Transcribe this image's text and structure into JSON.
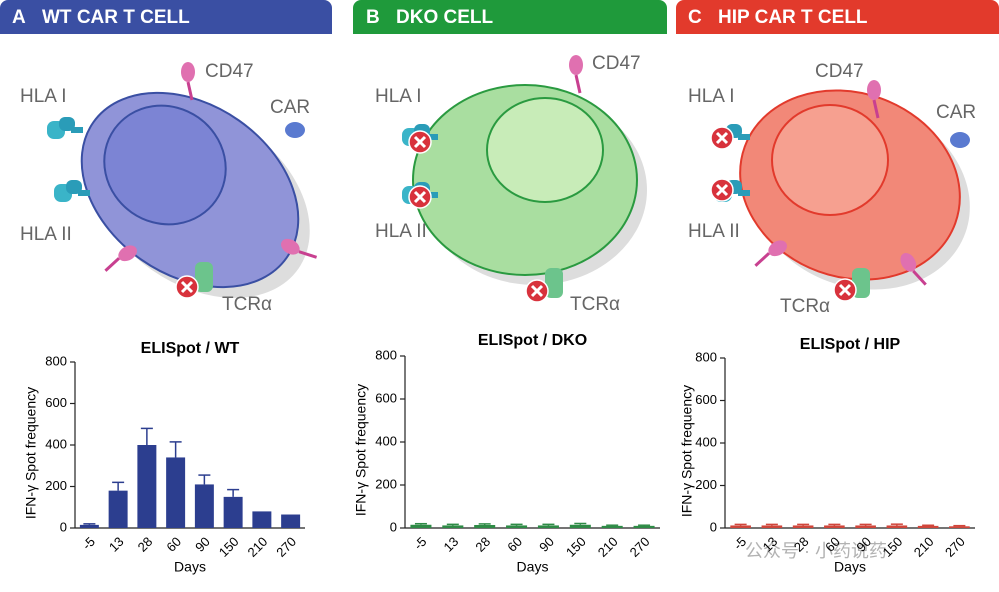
{
  "panels": [
    {
      "letter": "A",
      "title": "WT CAR T CELL",
      "labels": [
        "CD47",
        "HLA I",
        "CAR",
        "HLA II",
        "TCRα"
      ]
    },
    {
      "letter": "B",
      "title": "DKO CELL",
      "labels": [
        "HLA I",
        "CD47",
        "HLA II",
        "TCRα"
      ]
    },
    {
      "letter": "C",
      "title": "HIP CAR T CELL",
      "labels": [
        "CD47",
        "HLA I",
        "CAR",
        "HLA II",
        "TCRα"
      ]
    }
  ],
  "watermark": "公众号 · 小药说药",
  "chart_data": [
    {
      "type": "bar",
      "title": "ELISpot / WT",
      "xlabel": "Days",
      "ylabel": "IFN-γ Spot frequency",
      "categories": [
        "-5",
        "13",
        "28",
        "60",
        "90",
        "150",
        "210",
        "270"
      ],
      "series": [
        {
          "color": "#2c3e8f",
          "values": [
            15,
            180,
            400,
            340,
            210,
            150,
            80,
            65
          ],
          "errors": [
            5,
            40,
            80,
            75,
            45,
            35,
            0,
            0
          ]
        }
      ],
      "ylim": [
        0,
        800
      ],
      "yticks": [
        0,
        200,
        400,
        600,
        800
      ]
    },
    {
      "type": "bar",
      "title": "ELISpot / DKO",
      "xlabel": "Days",
      "ylabel": "IFN-γ Spot frequency",
      "categories": [
        "-5",
        "13",
        "28",
        "60",
        "90",
        "150",
        "210",
        "270"
      ],
      "series": [
        {
          "color": "#2e8b46",
          "values": [
            15,
            12,
            14,
            12,
            12,
            15,
            10,
            10
          ],
          "errors": [
            5,
            5,
            5,
            5,
            5,
            6,
            3,
            3
          ]
        }
      ],
      "ylim": [
        0,
        800
      ],
      "yticks": [
        0,
        200,
        400,
        600,
        800
      ]
    },
    {
      "type": "bar",
      "title": "ELISpot / HIP",
      "xlabel": "Days",
      "ylabel": "IFN-γ Spot frequency",
      "categories": [
        "-5",
        "13",
        "28",
        "60",
        "90",
        "150",
        "210",
        "270"
      ],
      "series": [
        {
          "color": "#d0453a",
          "values": [
            12,
            12,
            12,
            12,
            12,
            12,
            10,
            8
          ],
          "errors": [
            5,
            5,
            5,
            5,
            5,
            6,
            3,
            3
          ]
        }
      ],
      "ylim": [
        0,
        800
      ],
      "yticks": [
        0,
        200,
        400,
        600,
        800
      ]
    }
  ]
}
